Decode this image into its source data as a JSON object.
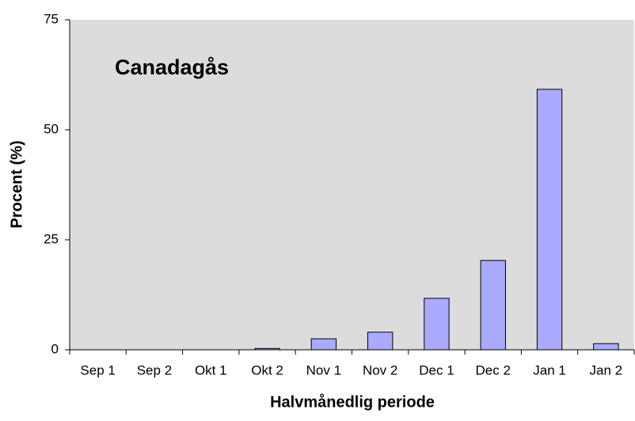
{
  "chart_data": {
    "type": "bar",
    "title": "Canadagås",
    "x_label": "Halvmånedlig periode",
    "y_label": "Procent (%)",
    "categories": [
      "Sep 1",
      "Sep 2",
      "Okt 1",
      "Okt 2",
      "Nov 1",
      "Nov 2",
      "Dec 1",
      "Dec 2",
      "Jan 1",
      "Jan 2"
    ],
    "values": [
      0,
      0,
      0,
      0.3,
      2.5,
      4.0,
      11.7,
      20.3,
      59.2,
      1.4
    ],
    "color": "#aaaaff",
    "ylim": [
      0,
      75
    ],
    "yticks": [
      0,
      25,
      50,
      75
    ],
    "grid": false
  }
}
